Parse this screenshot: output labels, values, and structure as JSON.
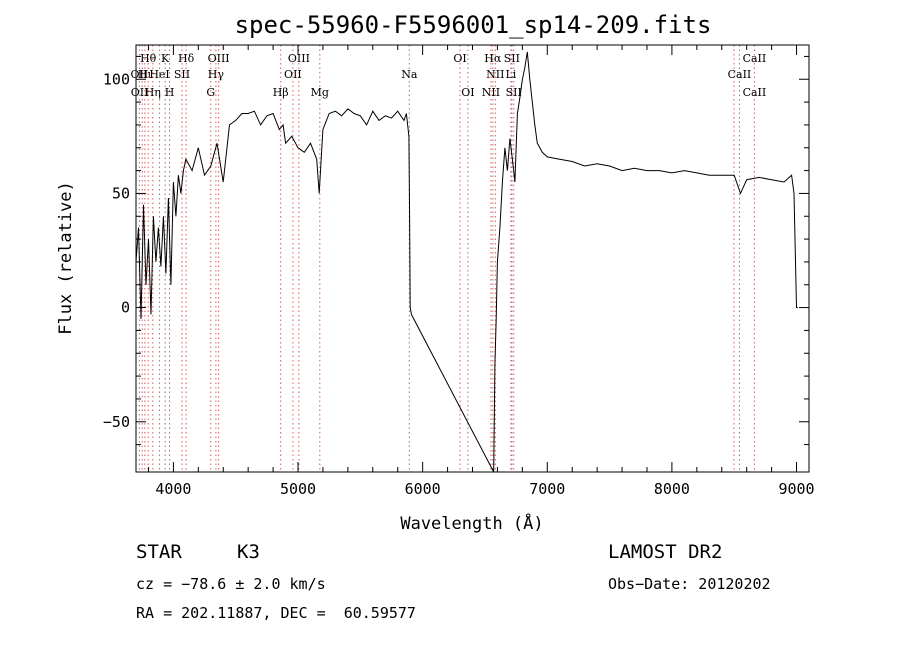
{
  "chart_data": {
    "type": "line",
    "title": "spec-55960-F5596001_sp14-209.fits",
    "xlabel": "Wavelength (Å)",
    "ylabel": "Flux (relative)",
    "xlim": [
      3700,
      9100
    ],
    "ylim": [
      -72,
      115
    ],
    "xticks": [
      4000,
      5000,
      6000,
      7000,
      8000,
      9000
    ],
    "yticks": [
      -50,
      0,
      50,
      100
    ],
    "grid": false,
    "series": [
      {
        "x": [
          3700,
          3720,
          3740,
          3760,
          3780,
          3800,
          3820,
          3840,
          3860,
          3880,
          3900,
          3920,
          3940,
          3960,
          3980,
          4000,
          4020,
          4040,
          4060,
          4080,
          4100,
          4150,
          4200,
          4250,
          4300,
          4350,
          4400,
          4450,
          4500,
          4550,
          4600,
          4650,
          4700,
          4750,
          4800,
          4850,
          4880,
          4900,
          4950,
          5000,
          5050,
          5100,
          5150,
          5170,
          5200,
          5250,
          5300,
          5350,
          5400,
          5450,
          5500,
          5550,
          5600,
          5650,
          5700,
          5750,
          5800,
          5850,
          5870,
          5890,
          5895,
          5900,
          5910,
          6570,
          6580,
          6590,
          6600,
          6620,
          6640,
          6660,
          6680,
          6700,
          6720,
          6740,
          6760,
          6780,
          6800,
          6820,
          6840,
          6860,
          6880,
          6900,
          6920,
          6940,
          6960,
          7000,
          7100,
          7200,
          7300,
          7400,
          7500,
          7600,
          7700,
          7800,
          7900,
          8000,
          8100,
          8200,
          8300,
          8400,
          8500,
          8550,
          8600,
          8700,
          8800,
          8900,
          8960,
          8980,
          9000,
          9010
        ],
        "y": [
          20,
          35,
          -5,
          45,
          10,
          30,
          -3,
          40,
          20,
          35,
          18,
          40,
          15,
          48,
          10,
          55,
          40,
          58,
          50,
          60,
          65,
          60,
          70,
          58,
          62,
          72,
          55,
          80,
          82,
          85,
          85,
          86,
          80,
          84,
          85,
          78,
          80,
          72,
          75,
          70,
          68,
          72,
          65,
          50,
          78,
          85,
          86,
          84,
          87,
          85,
          84,
          80,
          86,
          82,
          84,
          83,
          86,
          82,
          85,
          75,
          40,
          0,
          -3,
          -72,
          -25,
          -5,
          20,
          35,
          55,
          70,
          60,
          74,
          65,
          55,
          85,
          92,
          100,
          105,
          112,
          100,
          90,
          80,
          72,
          70,
          68,
          66,
          65,
          64,
          62,
          63,
          62,
          60,
          61,
          60,
          60,
          59,
          60,
          59,
          58,
          58,
          58,
          50,
          56,
          57,
          56,
          55,
          58,
          50,
          0,
          0
        ]
      }
    ],
    "annotations": [
      {
        "label": "Hθ",
        "x": 3798,
        "row": 1
      },
      {
        "label": "OII",
        "x": 3727,
        "row": 2
      },
      {
        "label": "OII",
        "x": 3729,
        "row": 3
      },
      {
        "label": "Hι",
        "x": 3771,
        "row": 2
      },
      {
        "label": "Hη",
        "x": 3835,
        "row": 3
      },
      {
        "label": "K",
        "x": 3934,
        "row": 1
      },
      {
        "label": "HeI",
        "x": 3889,
        "row": 2
      },
      {
        "label": "H",
        "x": 3969,
        "row": 3
      },
      {
        "label": "SII",
        "x": 4069,
        "row": 2
      },
      {
        "label": "Hδ",
        "x": 4102,
        "row": 1
      },
      {
        "label": "OIII",
        "x": 4363,
        "row": 1
      },
      {
        "label": "Hγ",
        "x": 4341,
        "row": 2
      },
      {
        "label": "G",
        "x": 4300,
        "row": 3
      },
      {
        "label": "OIII",
        "x": 5007,
        "row": 1
      },
      {
        "label": "OII",
        "x": 4959,
        "row": 2
      },
      {
        "label": "Hβ",
        "x": 4861,
        "row": 3
      },
      {
        "label": "Mg",
        "x": 5175,
        "row": 3
      },
      {
        "label": "Na",
        "x": 5893,
        "row": 2
      },
      {
        "label": "OI",
        "x": 6300,
        "row": 1
      },
      {
        "label": "OI",
        "x": 6363,
        "row": 3
      },
      {
        "label": "Hα",
        "x": 6563,
        "row": 1
      },
      {
        "label": "SII",
        "x": 6716,
        "row": 1
      },
      {
        "label": "NII",
        "x": 6583,
        "row": 2
      },
      {
        "label": "Li",
        "x": 6708,
        "row": 2
      },
      {
        "label": "NII",
        "x": 6548,
        "row": 3
      },
      {
        "label": "SII",
        "x": 6731,
        "row": 3
      },
      {
        "label": "CaII",
        "x": 8662,
        "row": 1
      },
      {
        "label": "CaII",
        "x": 8542,
        "row": 2
      },
      {
        "label": "CaII",
        "x": 8662,
        "row": 3
      }
    ],
    "line_markers_x": [
      3700,
      3727,
      3750,
      3771,
      3798,
      3835,
      3889,
      3934,
      3969,
      4069,
      4102,
      4300,
      4341,
      4363,
      4861,
      4959,
      5007,
      5175,
      5893,
      6300,
      6363,
      6548,
      6563,
      6583,
      6708,
      6716,
      6731,
      8498,
      8542,
      8662
    ]
  },
  "info": {
    "object_type": "STAR",
    "subclass": "K3",
    "survey": "LAMOST DR2",
    "cz": "cz = −78.6 ± 2.0 km/s",
    "obs_date": "Obs−Date: 20120202",
    "coords": "RA = 202.11887, DEC =  60.59577"
  }
}
